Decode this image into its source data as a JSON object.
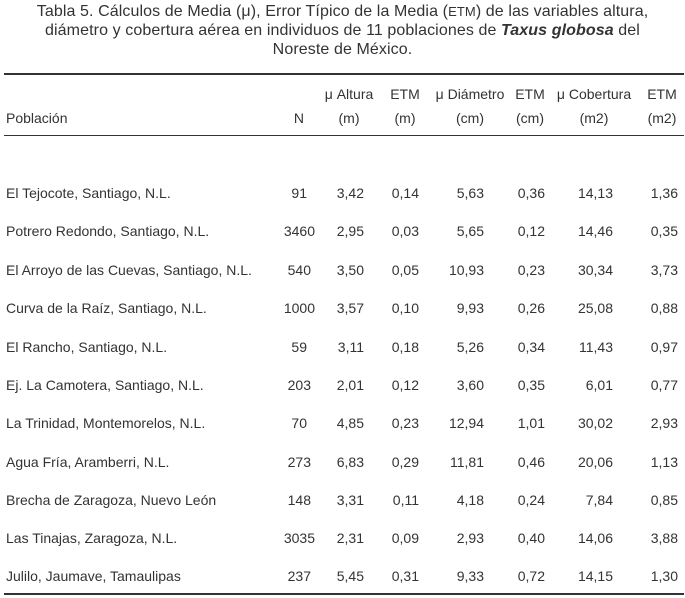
{
  "caption": {
    "line1_a": "Tabla 5. Cálculos de Media (μ), Error Típico de la Media (",
    "line1_b": "ETM",
    "line1_c": ") de las variables altura,",
    "line2_a": "diámetro y cobertura aérea en individuos de 11 poblaciones de ",
    "line2_species": "Taxus globosa",
    "line2_c": " del",
    "line3": "Noreste de México."
  },
  "headers": {
    "poblacion": "Población",
    "n": "N",
    "mu_altura": "μ Altura",
    "mu_altura_unit": "(m)",
    "etm1": "ETM",
    "etm1_unit": "(m)",
    "mu_diametro": "μ Diámetro",
    "mu_diametro_unit": "(cm)",
    "etm2": "ETM",
    "etm2_unit": "(cm)",
    "mu_cobertura": "μ Cobertura",
    "mu_cobertura_unit": "(m2)",
    "etm3": "ETM",
    "etm3_unit": "(m2)"
  },
  "rows": [
    {
      "poblacion": "El Tejocote, Santiago, N.L.",
      "n": "91",
      "altura": "3,42",
      "etm_altura": "0,14",
      "diametro": "5,63",
      "etm_diametro": "0,36",
      "cobertura": "14,13",
      "etm_cobertura": "1,36"
    },
    {
      "poblacion": "Potrero Redondo, Santiago, N.L.",
      "n": "3460",
      "altura": "2,95",
      "etm_altura": "0,03",
      "diametro": "5,65",
      "etm_diametro": "0,12",
      "cobertura": "14,46",
      "etm_cobertura": "0,35"
    },
    {
      "poblacion": "El Arroyo de las Cuevas, Santiago, N.L.",
      "n": "540",
      "altura": "3,50",
      "etm_altura": "0,05",
      "diametro": "10,93",
      "etm_diametro": "0,23",
      "cobertura": "30,34",
      "etm_cobertura": "3,73"
    },
    {
      "poblacion": "Curva de la Raíz, Santiago, N.L.",
      "n": "1000",
      "altura": "3,57",
      "etm_altura": "0,10",
      "diametro": "9,93",
      "etm_diametro": "0,26",
      "cobertura": "25,08",
      "etm_cobertura": "0,88"
    },
    {
      "poblacion": "El Rancho, Santiago, N.L.",
      "n": "59",
      "altura": "3,11",
      "etm_altura": "0,18",
      "diametro": "5,26",
      "etm_diametro": "0,34",
      "cobertura": "11,43",
      "etm_cobertura": "0,97"
    },
    {
      "poblacion": "Ej. La Camotera, Santiago, N.L.",
      "n": "203",
      "altura": "2,01",
      "etm_altura": "0,12",
      "diametro": "3,60",
      "etm_diametro": "0,35",
      "cobertura": "6,01",
      "etm_cobertura": "0,77"
    },
    {
      "poblacion": "La Trinidad, Montemorelos, N.L.",
      "n": "70",
      "altura": "4,85",
      "etm_altura": "0,23",
      "diametro": "12,94",
      "etm_diametro": "1,01",
      "cobertura": "30,02",
      "etm_cobertura": "2,93"
    },
    {
      "poblacion": "Agua Fría, Aramberri, N.L.",
      "n": "273",
      "altura": "6,83",
      "etm_altura": "0,29",
      "diametro": "11,81",
      "etm_diametro": "0,46",
      "cobertura": "20,06",
      "etm_cobertura": "1,13"
    },
    {
      "poblacion": "Brecha de Zaragoza, Nuevo León",
      "n": "148",
      "altura": "3,31",
      "etm_altura": "0,11",
      "diametro": "4,18",
      "etm_diametro": "0,24",
      "cobertura": "7,84",
      "etm_cobertura": "0,85"
    },
    {
      "poblacion": "Las Tinajas, Zaragoza, N.L.",
      "n": "3035",
      "altura": "2,31",
      "etm_altura": "0,09",
      "diametro": "2,93",
      "etm_diametro": "0,40",
      "cobertura": "14,06",
      "etm_cobertura": "3,88"
    },
    {
      "poblacion": "Julilo, Jaumave, Tamaulipas",
      "n": "237",
      "altura": "5,45",
      "etm_altura": "0,31",
      "diametro": "9,33",
      "etm_diametro": "0,72",
      "cobertura": "14,15",
      "etm_cobertura": "1,30"
    }
  ]
}
